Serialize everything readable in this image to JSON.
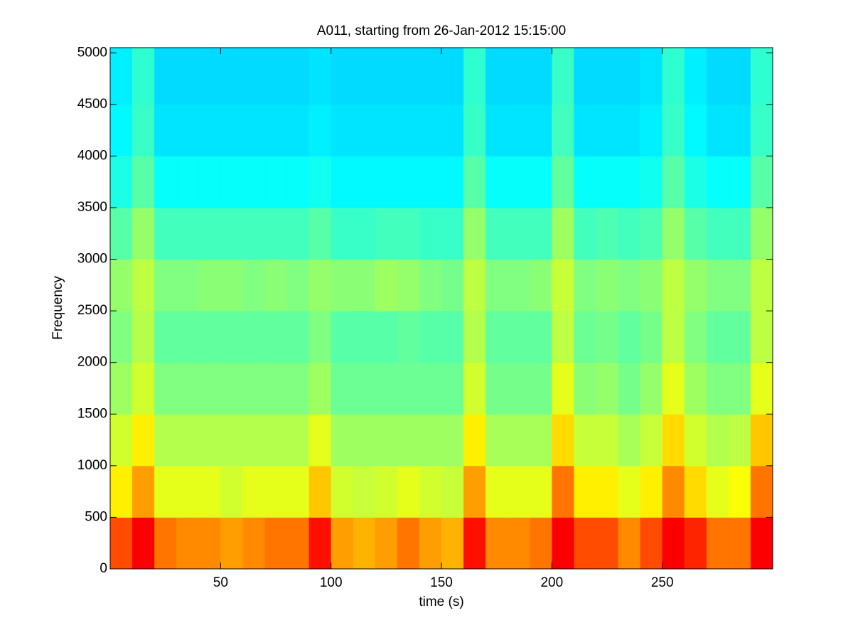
{
  "chart_data": {
    "type": "heatmap",
    "title": "A011, starting from 26-Jan-2012 15:15:00",
    "x_label": "time (s)",
    "y_label": "Frequency",
    "xlim": [
      0,
      300
    ],
    "ylim": [
      0,
      5050
    ],
    "xticks": [
      50,
      100,
      150,
      200,
      250
    ],
    "yticks": [
      0,
      500,
      1000,
      1500,
      2000,
      2500,
      3000,
      3500,
      4000,
      4500,
      5000
    ],
    "colormap": "jet",
    "clim": [
      0,
      1
    ],
    "xbins": [
      0,
      10,
      20,
      30,
      40,
      50,
      60,
      70,
      80,
      90,
      100,
      110,
      120,
      130,
      140,
      150,
      160,
      170,
      180,
      190,
      200,
      210,
      220,
      230,
      240,
      250,
      260,
      270,
      280,
      290,
      300
    ],
    "ybins": [
      0,
      500,
      1000,
      1500,
      2000,
      2500,
      3000,
      3500,
      4000,
      4500,
      5050
    ],
    "z": [
      [
        0.8,
        0.88,
        0.76,
        0.74,
        0.74,
        0.72,
        0.74,
        0.76,
        0.76,
        0.86,
        0.72,
        0.7,
        0.72,
        0.76,
        0.72,
        0.7,
        0.86,
        0.74,
        0.74,
        0.76,
        0.88,
        0.8,
        0.8,
        0.74,
        0.8,
        0.88,
        0.84,
        0.76,
        0.76,
        0.88
      ],
      [
        0.64,
        0.72,
        0.6,
        0.6,
        0.6,
        0.58,
        0.6,
        0.6,
        0.6,
        0.68,
        0.58,
        0.57,
        0.58,
        0.6,
        0.58,
        0.57,
        0.72,
        0.6,
        0.6,
        0.6,
        0.76,
        0.64,
        0.64,
        0.6,
        0.64,
        0.74,
        0.66,
        0.6,
        0.62,
        0.76
      ],
      [
        0.58,
        0.64,
        0.55,
        0.55,
        0.55,
        0.55,
        0.55,
        0.55,
        0.55,
        0.6,
        0.53,
        0.53,
        0.53,
        0.53,
        0.53,
        0.53,
        0.64,
        0.54,
        0.54,
        0.54,
        0.66,
        0.57,
        0.57,
        0.54,
        0.57,
        0.66,
        0.58,
        0.55,
        0.56,
        0.68
      ],
      [
        0.53,
        0.58,
        0.5,
        0.5,
        0.5,
        0.5,
        0.5,
        0.5,
        0.5,
        0.53,
        0.48,
        0.48,
        0.48,
        0.48,
        0.48,
        0.48,
        0.58,
        0.49,
        0.49,
        0.49,
        0.6,
        0.51,
        0.52,
        0.49,
        0.52,
        0.6,
        0.53,
        0.5,
        0.5,
        0.6
      ],
      [
        0.5,
        0.55,
        0.47,
        0.47,
        0.47,
        0.47,
        0.47,
        0.47,
        0.47,
        0.5,
        0.46,
        0.46,
        0.46,
        0.47,
        0.46,
        0.46,
        0.55,
        0.47,
        0.47,
        0.47,
        0.56,
        0.48,
        0.49,
        0.47,
        0.49,
        0.56,
        0.5,
        0.47,
        0.47,
        0.56
      ],
      [
        0.52,
        0.56,
        0.5,
        0.5,
        0.51,
        0.51,
        0.5,
        0.51,
        0.5,
        0.52,
        0.51,
        0.51,
        0.53,
        0.52,
        0.5,
        0.49,
        0.56,
        0.5,
        0.5,
        0.51,
        0.57,
        0.5,
        0.51,
        0.5,
        0.51,
        0.56,
        0.52,
        0.5,
        0.5,
        0.56
      ],
      [
        0.46,
        0.52,
        0.44,
        0.44,
        0.44,
        0.44,
        0.44,
        0.44,
        0.44,
        0.46,
        0.43,
        0.43,
        0.44,
        0.44,
        0.43,
        0.43,
        0.52,
        0.44,
        0.44,
        0.44,
        0.53,
        0.44,
        0.45,
        0.44,
        0.45,
        0.52,
        0.46,
        0.44,
        0.44,
        0.52
      ],
      [
        0.4,
        0.46,
        0.38,
        0.38,
        0.38,
        0.38,
        0.38,
        0.38,
        0.38,
        0.39,
        0.37,
        0.37,
        0.37,
        0.37,
        0.37,
        0.37,
        0.46,
        0.38,
        0.38,
        0.38,
        0.47,
        0.38,
        0.38,
        0.38,
        0.39,
        0.46,
        0.4,
        0.38,
        0.38,
        0.46
      ],
      [
        0.37,
        0.43,
        0.35,
        0.35,
        0.35,
        0.35,
        0.35,
        0.35,
        0.35,
        0.36,
        0.35,
        0.35,
        0.35,
        0.35,
        0.35,
        0.35,
        0.43,
        0.35,
        0.35,
        0.35,
        0.44,
        0.35,
        0.35,
        0.35,
        0.36,
        0.43,
        0.37,
        0.35,
        0.35,
        0.43
      ],
      [
        0.36,
        0.42,
        0.34,
        0.34,
        0.34,
        0.34,
        0.34,
        0.34,
        0.34,
        0.35,
        0.34,
        0.34,
        0.34,
        0.34,
        0.34,
        0.34,
        0.42,
        0.34,
        0.34,
        0.34,
        0.43,
        0.34,
        0.34,
        0.34,
        0.35,
        0.42,
        0.36,
        0.34,
        0.34,
        0.42
      ]
    ]
  }
}
